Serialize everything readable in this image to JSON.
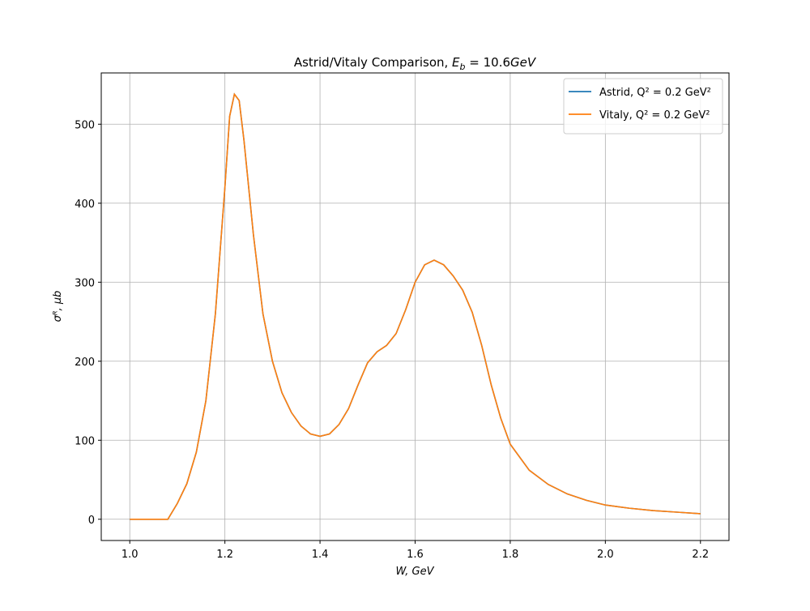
{
  "chart_data": {
    "type": "line",
    "title": [
      "Astrid/Vitaly Comparison, ",
      "E",
      "b",
      " = 10.6",
      "GeV"
    ],
    "xlabel": "W, GeV",
    "ylabel": "σᴿ, μb",
    "x": [
      1.0,
      1.04,
      1.08,
      1.1,
      1.12,
      1.14,
      1.16,
      1.18,
      1.2,
      1.21,
      1.22,
      1.23,
      1.24,
      1.26,
      1.28,
      1.3,
      1.32,
      1.34,
      1.36,
      1.38,
      1.4,
      1.42,
      1.44,
      1.46,
      1.48,
      1.5,
      1.52,
      1.54,
      1.56,
      1.58,
      1.6,
      1.62,
      1.64,
      1.66,
      1.68,
      1.7,
      1.72,
      1.74,
      1.76,
      1.78,
      1.8,
      1.84,
      1.88,
      1.92,
      1.96,
      2.0,
      2.05,
      2.1,
      2.15,
      2.2
    ],
    "series": [
      {
        "name": "Astrid, Q² = 0.2 GeV²",
        "color": "#1f77b4",
        "values": [
          0,
          0,
          0,
          20,
          45,
          85,
          150,
          260,
          420,
          510,
          538,
          530,
          480,
          360,
          260,
          200,
          160,
          135,
          118,
          108,
          105,
          108,
          120,
          140,
          170,
          198,
          212,
          220,
          235,
          265,
          300,
          322,
          328,
          322,
          308,
          290,
          262,
          220,
          170,
          128,
          95,
          62,
          44,
          32,
          24,
          18,
          14,
          11,
          9,
          7
        ]
      },
      {
        "name": "Vitaly, Q² = 0.2 GeV²",
        "color": "#ff7f0e",
        "values": [
          0,
          0,
          0,
          20,
          45,
          85,
          150,
          260,
          420,
          510,
          538,
          530,
          480,
          360,
          260,
          200,
          160,
          135,
          118,
          108,
          105,
          108,
          120,
          140,
          170,
          198,
          212,
          220,
          235,
          265,
          300,
          322,
          328,
          322,
          308,
          290,
          262,
          220,
          170,
          128,
          95,
          62,
          44,
          32,
          24,
          18,
          14,
          11,
          9,
          7
        ]
      }
    ],
    "xlim": [
      0.94,
      2.26
    ],
    "xticks": [
      {
        "value": 1,
        "label": "1.0"
      },
      1.2,
      1.4,
      1.6,
      1.8,
      {
        "value": 2,
        "label": "2.0"
      },
      2.2
    ],
    "ylim": [
      -26.9,
      564.9
    ],
    "yticks": [
      0,
      100,
      200,
      300,
      400,
      500
    ],
    "grid": true,
    "legend": "upper right"
  }
}
